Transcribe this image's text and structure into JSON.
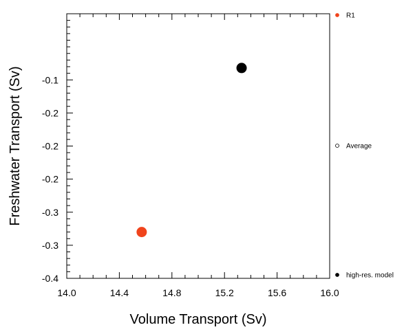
{
  "chart_data": {
    "type": "scatter",
    "xlabel": "Volume Transport (Sv)",
    "ylabel": "Freshwater Transport (Sv)",
    "xlim": [
      14.0,
      16.0
    ],
    "ylim": [
      -0.4,
      0.0
    ],
    "x_ticks": [
      14.0,
      14.4,
      14.8,
      15.2,
      15.6,
      16.0
    ],
    "x_tick_labels": [
      "14.0",
      "14.4",
      "14.8",
      "15.2",
      "15.6",
      "16.0"
    ],
    "y_ticks": [
      -0.1,
      -0.15,
      -0.2,
      -0.25,
      -0.3,
      -0.35,
      -0.4
    ],
    "y_tick_labels": [
      "-0.1",
      "-0.2",
      "-0.2",
      "-0.2",
      "-0.3",
      "-0.3",
      "-0.4"
    ],
    "grid": false,
    "legend_position": "right",
    "series": [
      {
        "name": "R1",
        "color": "#f0441c",
        "marker": "filled-circle",
        "points": [
          {
            "x": 14.57,
            "y": -0.33
          }
        ]
      },
      {
        "name": "Average",
        "color": "#000000",
        "marker": "open-circle",
        "points": []
      },
      {
        "name": "high-res. model",
        "color": "#000000",
        "marker": "filled-circle",
        "points": [
          {
            "x": 15.33,
            "y": -0.082
          }
        ]
      }
    ]
  }
}
